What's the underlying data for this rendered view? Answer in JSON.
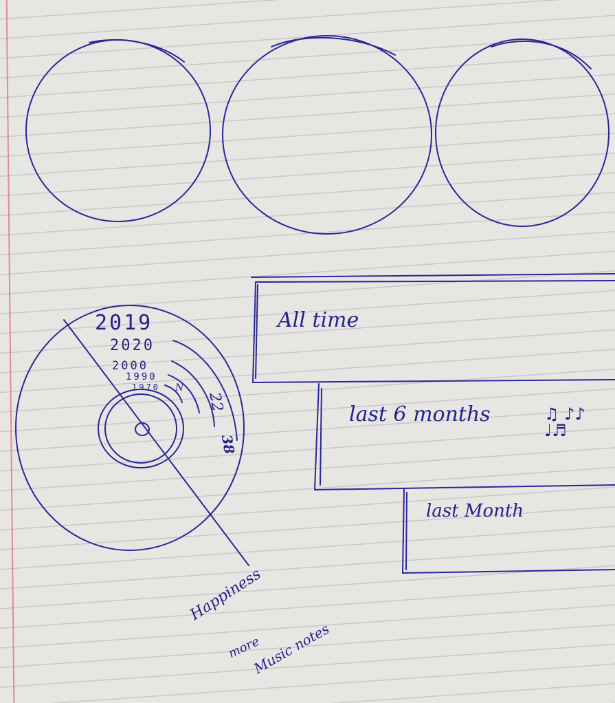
{
  "record": {
    "years": [
      "2019",
      "2020",
      "2000",
      "1990",
      "1970"
    ],
    "side_numbers": [
      "N",
      "22",
      "38"
    ]
  },
  "cards": [
    {
      "label": "All time"
    },
    {
      "label": "last 6 months",
      "icon": "music-notes-icon"
    },
    {
      "label": "last Month"
    }
  ],
  "notes": [
    "Happiness",
    "more",
    "Music notes"
  ],
  "colors": {
    "ink": "#27279a",
    "paper": "#e8e6e2",
    "margin": "#dc6e78"
  }
}
